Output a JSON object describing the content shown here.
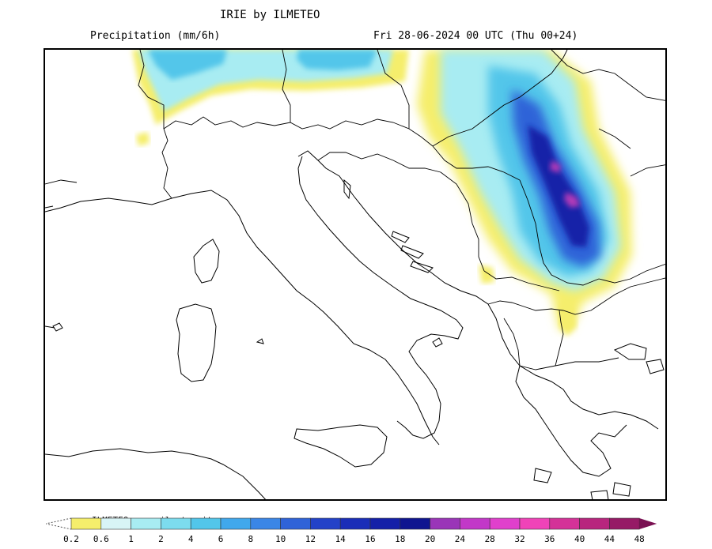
{
  "header": {
    "title": "IRIE by ILMETEO",
    "subtitle": "Precipitation (mm/6h)",
    "valid_time": "Fri 28-06-2024 00 UTC (Thu 00+24)"
  },
  "map": {
    "region": "Italy and Balkans",
    "features": [
      "coastlines",
      "country-borders"
    ],
    "precip_colors": {
      "light": "#f5ee6c",
      "low": "#a8ecf2",
      "moderate": "#52c6ea",
      "high": "#2f63d8",
      "very_high": "#1420a8",
      "extreme": "#b03ab8"
    }
  },
  "legend": {
    "watermark": "ILMETEO: www.ilmeteo.it",
    "ticks": [
      "0.2",
      "0.6",
      "1",
      "2",
      "4",
      "6",
      "8",
      "10",
      "12",
      "14",
      "16",
      "18",
      "20",
      "24",
      "28",
      "32",
      "36",
      "40",
      "44",
      "48"
    ],
    "colors": [
      "#f5ee6c",
      "#d8f4f6",
      "#a8ecf2",
      "#7cdcee",
      "#52c6ea",
      "#40a8ec",
      "#3a86e6",
      "#2f63d8",
      "#2342c8",
      "#1a2db8",
      "#1420a8",
      "#0f1590",
      "#9a35b8",
      "#c238c8",
      "#e040cc",
      "#f043b8",
      "#d43298",
      "#b8257e",
      "#961a66",
      "#7a1052"
    ]
  }
}
